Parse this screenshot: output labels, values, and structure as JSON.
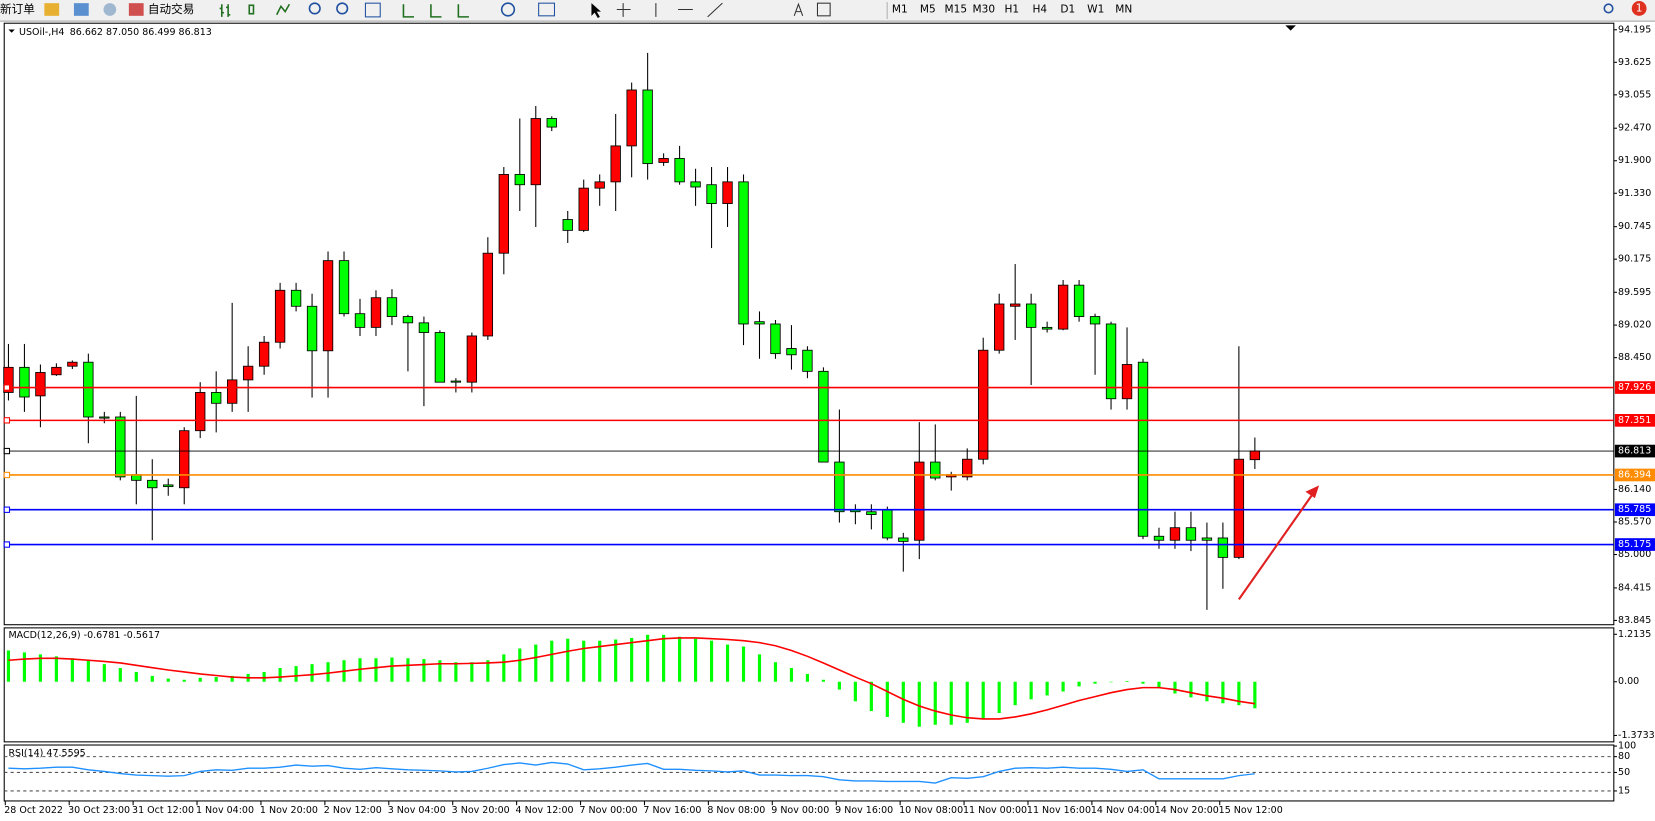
{
  "toolbar": {
    "new_order": "新订单",
    "auto_trade": "自动交易",
    "timeframes": [
      "M1",
      "M5",
      "M15",
      "M30",
      "H1",
      "H4",
      "D1",
      "W1",
      "MN"
    ],
    "notification_count": 1
  },
  "chart_data": [
    {
      "type": "candlestick",
      "title": "USOil-,H4",
      "ohlc_text": "86.662 87.050 86.499 86.813",
      "up_color": "#ff0000",
      "down_color": "#00ff00",
      "categories": [
        "28 Oct 2022",
        null,
        null,
        null,
        "30 Oct 23:00",
        null,
        null,
        null,
        "31 Oct 12:00",
        null,
        null,
        null,
        "1 Nov 04:00",
        null,
        null,
        null,
        "1 Nov 20:00",
        null,
        null,
        null,
        "2 Nov 12:00",
        null,
        null,
        null,
        "3 Nov 04:00",
        null,
        null,
        null,
        "3 Nov 20:00",
        null,
        null,
        null,
        "4 Nov 12:00",
        null,
        null,
        null,
        "7 Nov 00:00",
        null,
        null,
        null,
        "7 Nov 16:00",
        null,
        null,
        null,
        "8 Nov 08:00",
        null,
        null,
        null,
        "9 Nov 00:00",
        null,
        null,
        null,
        "9 Nov 16:00",
        null,
        null,
        null,
        "10 Nov 08:00",
        null,
        null,
        null,
        "11 Nov 00:00",
        null,
        null,
        null,
        "11 Nov 16:00",
        null,
        null,
        null,
        "14 Nov 04:00",
        null,
        null,
        null,
        "14 Nov 20:00",
        null,
        null,
        null,
        "15 Nov 12:00",
        null,
        null
      ],
      "open": [
        87.84,
        88.28,
        87.78,
        88.15,
        88.3,
        88.37,
        87.41,
        87.41,
        86.4,
        86.3,
        86.22,
        86.17,
        87.17,
        87.84,
        87.65,
        88.06,
        88.3,
        88.72,
        89.63,
        89.35,
        88.57,
        90.15,
        89.22,
        88.98,
        89.5,
        89.17,
        89.06,
        88.89,
        88.04,
        88.02,
        88.83,
        90.28,
        91.66,
        91.48,
        92.64,
        90.87,
        90.68,
        91.42,
        91.53,
        92.16,
        93.14,
        91.87,
        91.94,
        91.53,
        91.48,
        91.15,
        91.53,
        89.08,
        89.04,
        88.61,
        88.58,
        88.21,
        86.62,
        85.79,
        85.75,
        85.79,
        85.29,
        85.25,
        86.62,
        86.36,
        86.36,
        86.67,
        88.58,
        89.35,
        89.39,
        88.98,
        88.95,
        89.72,
        89.17,
        89.04,
        87.73,
        88.37,
        85.32,
        85.25,
        85.47,
        85.29,
        85.29,
        84.95,
        86.662
      ],
      "high": [
        88.69,
        88.69,
        88.33,
        88.35,
        88.4,
        88.52,
        87.5,
        87.5,
        87.78,
        86.67,
        86.33,
        87.23,
        88.02,
        88.21,
        89.41,
        88.65,
        88.83,
        89.76,
        89.76,
        89.57,
        90.31,
        90.31,
        89.48,
        89.63,
        89.65,
        89.2,
        89.17,
        88.93,
        88.09,
        88.89,
        90.56,
        91.79,
        92.64,
        92.86,
        92.68,
        91.02,
        91.57,
        91.66,
        92.72,
        93.27,
        93.79,
        92.03,
        92.16,
        91.76,
        91.79,
        91.79,
        91.66,
        89.26,
        89.11,
        89.02,
        88.65,
        88.28,
        87.54,
        85.88,
        85.88,
        85.84,
        85.38,
        87.32,
        87.28,
        86.45,
        86.86,
        88.8,
        89.57,
        90.09,
        89.57,
        89.08,
        89.81,
        89.81,
        89.22,
        89.08,
        88.98,
        88.43,
        85.47,
        85.75,
        85.75,
        85.56,
        85.56,
        88.65,
        87.05
      ],
      "low": [
        87.7,
        87.5,
        87.23,
        88.13,
        88.25,
        86.95,
        87.3,
        86.3,
        85.88,
        85.25,
        86.03,
        85.88,
        87.04,
        87.14,
        87.5,
        87.5,
        88.15,
        88.61,
        89.26,
        87.75,
        87.75,
        89.17,
        88.83,
        88.83,
        89.02,
        88.21,
        87.6,
        88.02,
        87.84,
        87.84,
        88.76,
        89.91,
        91.02,
        90.74,
        92.42,
        90.46,
        90.65,
        91.11,
        91.02,
        91.61,
        91.57,
        91.81,
        91.48,
        91.11,
        90.37,
        90.74,
        88.67,
        88.43,
        88.43,
        88.24,
        88.09,
        86.62,
        85.56,
        85.53,
        85.44,
        85.25,
        84.7,
        84.92,
        86.3,
        86.12,
        86.3,
        86.58,
        88.52,
        88.76,
        87.97,
        88.89,
        88.93,
        89.08,
        88.15,
        87.54,
        87.54,
        85.27,
        85.1,
        85.1,
        85.06,
        84.03,
        84.4,
        84.92,
        86.499
      ],
      "close": [
        88.28,
        87.76,
        88.19,
        88.28,
        88.37,
        87.41,
        87.39,
        86.36,
        86.3,
        86.17,
        86.19,
        87.17,
        87.84,
        87.65,
        88.06,
        88.3,
        88.72,
        89.63,
        89.35,
        88.57,
        90.15,
        89.22,
        88.98,
        89.5,
        89.17,
        89.06,
        88.89,
        88.02,
        88.02,
        88.83,
        90.28,
        91.66,
        91.48,
        92.64,
        92.49,
        90.68,
        91.42,
        91.53,
        92.16,
        93.14,
        91.85,
        91.94,
        91.53,
        91.44,
        91.15,
        91.53,
        89.04,
        89.04,
        88.52,
        88.5,
        88.21,
        86.62,
        85.75,
        85.75,
        85.7,
        85.29,
        85.23,
        86.62,
        86.34,
        86.4,
        86.67,
        88.58,
        89.39,
        89.39,
        88.98,
        88.95,
        89.72,
        89.17,
        89.04,
        87.73,
        88.33,
        85.32,
        85.25,
        85.47,
        85.25,
        85.25,
        84.95,
        86.67,
        86.813
      ],
      "ylim": [
        83.77,
        94.31
      ],
      "yticks": [
        94.195,
        93.625,
        93.055,
        {
          "value": 92.47,
          "label": "92.470"
        },
        {
          "value": 91.9,
          "label": "91.900"
        },
        {
          "value": 91.33,
          "label": "91.330"
        },
        90.745,
        90.175,
        89.595,
        {
          "value": 89.02,
          "label": "89.020"
        },
        {
          "value": 88.45,
          "label": "88.450"
        },
        {
          "value": 86.14,
          "label": "86.140"
        },
        {
          "value": 85.57,
          "label": "85.570"
        },
        {
          "value": 85.0,
          "label": "85.000"
        },
        84.415,
        83.845
      ],
      "levels": [
        {
          "value": 87.926,
          "color": "#ff0000"
        },
        {
          "value": 87.351,
          "color": "#ff0000"
        },
        {
          "value": 86.813,
          "color": "#000000"
        },
        {
          "value": 86.394,
          "color": "#ff8c00"
        },
        {
          "value": 85.785,
          "color": "#0000ff"
        },
        {
          "value": 85.175,
          "color": "#0000ff"
        }
      ]
    },
    {
      "type": "macd",
      "title": "MACD(12,26,9) -0.6781 -0.5617",
      "color": "#00ff00",
      "signal_color": "#ff0000",
      "values": [
        0.8,
        0.75,
        0.7,
        0.65,
        0.6,
        0.55,
        0.45,
        0.35,
        0.25,
        0.15,
        0.08,
        0.05,
        0.1,
        0.12,
        0.15,
        0.2,
        0.25,
        0.35,
        0.4,
        0.45,
        0.5,
        0.55,
        0.6,
        0.6,
        0.62,
        0.6,
        0.58,
        0.55,
        0.5,
        0.5,
        0.55,
        0.7,
        0.85,
        0.95,
        1.05,
        1.1,
        1.05,
        1.05,
        1.08,
        1.12,
        1.2,
        1.2,
        1.15,
        1.1,
        1.05,
        0.95,
        0.9,
        0.7,
        0.5,
        0.35,
        0.2,
        0.05,
        -0.2,
        -0.5,
        -0.75,
        -0.9,
        -1.05,
        -1.15,
        -1.1,
        -1.1,
        -1.05,
        -0.95,
        -0.8,
        -0.6,
        -0.45,
        -0.35,
        -0.25,
        -0.12,
        -0.05,
        0.0,
        0.02,
        -0.05,
        -0.15,
        -0.3,
        -0.4,
        -0.5,
        -0.55,
        -0.6,
        -0.6781
      ],
      "signal": [
        0.55,
        0.58,
        0.6,
        0.6,
        0.58,
        0.55,
        0.52,
        0.48,
        0.42,
        0.36,
        0.3,
        0.25,
        0.2,
        0.16,
        0.12,
        0.1,
        0.1,
        0.12,
        0.15,
        0.18,
        0.22,
        0.27,
        0.32,
        0.36,
        0.4,
        0.42,
        0.44,
        0.46,
        0.46,
        0.47,
        0.48,
        0.5,
        0.55,
        0.62,
        0.7,
        0.78,
        0.85,
        0.9,
        0.95,
        1.0,
        1.05,
        1.1,
        1.12,
        1.12,
        1.1,
        1.08,
        1.05,
        1.0,
        0.92,
        0.8,
        0.65,
        0.48,
        0.3,
        0.12,
        -0.05,
        -0.25,
        -0.45,
        -0.62,
        -0.75,
        -0.85,
        -0.92,
        -0.95,
        -0.95,
        -0.9,
        -0.82,
        -0.72,
        -0.6,
        -0.48,
        -0.38,
        -0.28,
        -0.2,
        -0.15,
        -0.15,
        -0.2,
        -0.28,
        -0.36,
        -0.42,
        -0.5,
        -0.5617
      ],
      "ylim": [
        -1.51,
        1.35
      ],
      "yticks": [
        1.2135,
        {
          "value": 0,
          "label": "0.00"
        },
        -1.3733
      ]
    },
    {
      "type": "rsi",
      "title": "RSI(14) 47.5595",
      "color": "#1e90ff",
      "values": [
        58,
        57,
        58,
        60,
        60,
        55,
        52,
        48,
        45,
        44,
        43,
        44,
        52,
        55,
        54,
        58,
        58,
        60,
        64,
        62,
        63,
        58,
        56,
        59,
        57,
        55,
        54,
        53,
        51,
        52,
        58,
        65,
        68,
        64,
        69,
        66,
        55,
        57,
        60,
        64,
        67,
        56,
        56,
        54,
        53,
        51,
        53,
        45,
        45,
        44,
        44,
        42,
        36,
        34,
        34,
        33,
        33,
        33,
        30,
        40,
        39,
        42,
        52,
        58,
        59,
        58,
        60,
        58,
        58,
        56,
        52,
        55,
        38,
        38,
        38,
        38,
        38,
        44,
        47.5595
      ],
      "ylim": [
        0,
        100
      ],
      "yticks": [
        100,
        80,
        50,
        15
      ],
      "grid": "dashed"
    }
  ]
}
